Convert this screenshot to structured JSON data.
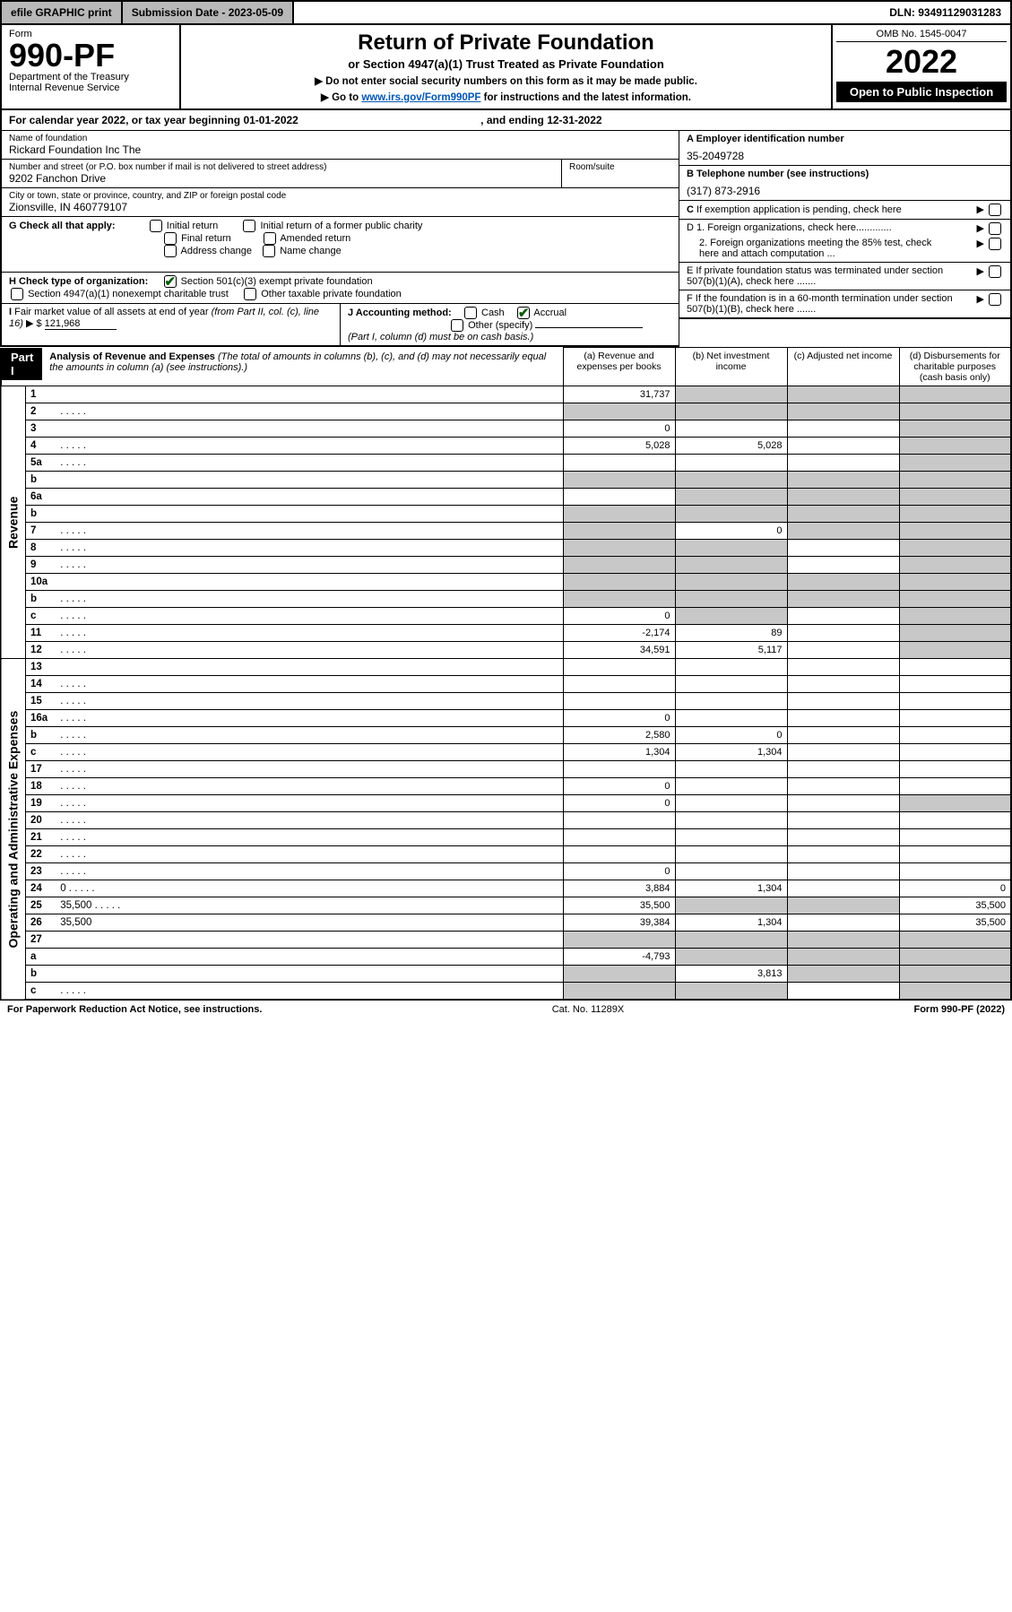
{
  "topbar": {
    "efile_btn": "efile GRAPHIC print",
    "submission": "Submission Date - 2023-05-09",
    "dln": "DLN: 93491129031283"
  },
  "header": {
    "form_label": "Form",
    "form_no": "990-PF",
    "dept": "Department of the Treasury",
    "irs": "Internal Revenue Service",
    "title": "Return of Private Foundation",
    "subtitle": "or Section 4947(a)(1) Trust Treated as Private Foundation",
    "note1": "▶ Do not enter social security numbers on this form as it may be made public.",
    "note2_pre": "▶ Go to ",
    "note2_link": "www.irs.gov/Form990PF",
    "note2_post": " for instructions and the latest information.",
    "omb": "OMB No. 1545-0047",
    "year": "2022",
    "open": "Open to Public Inspection"
  },
  "calendar": {
    "pre": "For calendar year 2022, or tax year beginning ",
    "begin": "01-01-2022",
    "mid": " , and ending ",
    "end": "12-31-2022"
  },
  "foundation": {
    "name_lbl": "Name of foundation",
    "name": "Rickard Foundation Inc The",
    "addr_lbl": "Number and street (or P.O. box number if mail is not delivered to street address)",
    "addr": "9202 Fanchon Drive",
    "room_lbl": "Room/suite",
    "city_lbl": "City or town, state or province, country, and ZIP or foreign postal code",
    "city": "Zionsville, IN  460779107"
  },
  "right": {
    "a_lbl": "A Employer identification number",
    "a_val": "35-2049728",
    "b_lbl": "B Telephone number (see instructions)",
    "b_val": "(317) 873-2916",
    "c_lbl": "C If exemption application is pending, check here",
    "d1": "D 1. Foreign organizations, check here.............",
    "d2": "2. Foreign organizations meeting the 85% test, check here and attach computation ...",
    "e": "E  If private foundation status was terminated under section 507(b)(1)(A), check here .......",
    "f": "F  If the foundation is in a 60-month termination under section 507(b)(1)(B), check here ......."
  },
  "g": {
    "label": "G Check all that apply:",
    "opts": [
      "Initial return",
      "Initial return of a former public charity",
      "Final return",
      "Amended return",
      "Address change",
      "Name change"
    ]
  },
  "h": {
    "label": "H Check type of organization:",
    "o1": "Section 501(c)(3) exempt private foundation",
    "o2": "Section 4947(a)(1) nonexempt charitable trust",
    "o3": "Other taxable private foundation"
  },
  "i": {
    "label": "I Fair market value of all assets at end of year (from Part II, col. (c), line 16) ▶ $",
    "val": "121,968"
  },
  "j": {
    "label": "J Accounting method:",
    "cash": "Cash",
    "accrual": "Accrual",
    "other": "Other (specify)",
    "note": "(Part I, column (d) must be on cash basis.)"
  },
  "part1": {
    "badge": "Part I",
    "title": "Analysis of Revenue and Expenses",
    "title_note": " (The total of amounts in columns (b), (c), and (d) may not necessarily equal the amounts in column (a) (see instructions).)",
    "col_a": "(a)   Revenue and expenses per books",
    "col_b": "(b)   Net investment income",
    "col_c": "(c)   Adjusted net income",
    "col_d": "(d)  Disbursements for charitable purposes (cash basis only)"
  },
  "revenue_label": "Revenue",
  "opex_label": "Operating and Administrative Expenses",
  "rows": [
    {
      "n": "1",
      "d": "",
      "a": "31,737",
      "b": "",
      "c": "",
      "shade_b": true,
      "shade_c": true,
      "shade_d": true
    },
    {
      "n": "2",
      "d": "",
      "a": "",
      "b": "",
      "c": "",
      "shade_a": true,
      "shade_b": true,
      "shade_c": true,
      "shade_d": true,
      "dots": true
    },
    {
      "n": "3",
      "d": "",
      "a": "0",
      "b": "",
      "c": "",
      "shade_d": true
    },
    {
      "n": "4",
      "d": "",
      "a": "5,028",
      "b": "5,028",
      "c": "",
      "shade_d": true,
      "dots": true
    },
    {
      "n": "5a",
      "d": "",
      "a": "",
      "b": "",
      "c": "",
      "shade_d": true,
      "dots": true
    },
    {
      "n": "b",
      "d": "",
      "a": "",
      "b": "",
      "c": "",
      "shade_a": true,
      "shade_b": true,
      "shade_c": true,
      "shade_d": true
    },
    {
      "n": "6a",
      "d": "",
      "a": "",
      "b": "",
      "c": "",
      "shade_b": true,
      "shade_c": true,
      "shade_d": true
    },
    {
      "n": "b",
      "d": "",
      "a": "",
      "b": "",
      "c": "",
      "shade_a": true,
      "shade_b": true,
      "shade_c": true,
      "shade_d": true
    },
    {
      "n": "7",
      "d": "",
      "a": "",
      "b": "0",
      "c": "",
      "shade_a": true,
      "shade_c": true,
      "shade_d": true,
      "dots": true
    },
    {
      "n": "8",
      "d": "",
      "a": "",
      "b": "",
      "c": "",
      "shade_a": true,
      "shade_b": true,
      "shade_d": true,
      "dots": true
    },
    {
      "n": "9",
      "d": "",
      "a": "",
      "b": "",
      "c": "",
      "shade_a": true,
      "shade_b": true,
      "shade_d": true,
      "dots": true
    },
    {
      "n": "10a",
      "d": "",
      "a": "",
      "b": "",
      "c": "",
      "shade_a": true,
      "shade_b": true,
      "shade_c": true,
      "shade_d": true
    },
    {
      "n": "b",
      "d": "",
      "a": "",
      "b": "",
      "c": "",
      "shade_a": true,
      "shade_b": true,
      "shade_c": true,
      "shade_d": true,
      "dots": true
    },
    {
      "n": "c",
      "d": "",
      "a": "0",
      "b": "",
      "c": "",
      "shade_b": true,
      "shade_d": true,
      "dots": true
    },
    {
      "n": "11",
      "d": "",
      "a": "-2,174",
      "b": "89",
      "c": "",
      "shade_d": true,
      "dots": true
    },
    {
      "n": "12",
      "d": "",
      "a": "34,591",
      "b": "5,117",
      "c": "",
      "shade_d": true,
      "dots": true,
      "bold": true
    },
    {
      "n": "13",
      "d": "",
      "a": "",
      "b": "",
      "c": ""
    },
    {
      "n": "14",
      "d": "",
      "a": "",
      "b": "",
      "c": "",
      "dots": true
    },
    {
      "n": "15",
      "d": "",
      "a": "",
      "b": "",
      "c": "",
      "dots": true
    },
    {
      "n": "16a",
      "d": "",
      "a": "0",
      "b": "",
      "c": "",
      "dots": true
    },
    {
      "n": "b",
      "d": "",
      "a": "2,580",
      "b": "0",
      "c": "",
      "dots": true
    },
    {
      "n": "c",
      "d": "",
      "a": "1,304",
      "b": "1,304",
      "c": "",
      "dots": true
    },
    {
      "n": "17",
      "d": "",
      "a": "",
      "b": "",
      "c": "",
      "dots": true
    },
    {
      "n": "18",
      "d": "",
      "a": "0",
      "b": "",
      "c": "",
      "dots": true
    },
    {
      "n": "19",
      "d": "",
      "a": "0",
      "b": "",
      "c": "",
      "shade_d": true,
      "dots": true
    },
    {
      "n": "20",
      "d": "",
      "a": "",
      "b": "",
      "c": "",
      "dots": true
    },
    {
      "n": "21",
      "d": "",
      "a": "",
      "b": "",
      "c": "",
      "dots": true
    },
    {
      "n": "22",
      "d": "",
      "a": "",
      "b": "",
      "c": "",
      "dots": true
    },
    {
      "n": "23",
      "d": "",
      "a": "0",
      "b": "",
      "c": "",
      "dots": true
    },
    {
      "n": "24",
      "d": "0",
      "a": "3,884",
      "b": "1,304",
      "c": "",
      "dots": true
    },
    {
      "n": "25",
      "d": "35,500",
      "a": "35,500",
      "b": "",
      "c": "",
      "shade_b": true,
      "shade_c": true,
      "dots": true
    },
    {
      "n": "26",
      "d": "35,500",
      "a": "39,384",
      "b": "1,304",
      "c": ""
    },
    {
      "n": "27",
      "d": "",
      "a": "",
      "b": "",
      "c": "",
      "shade_a": true,
      "shade_b": true,
      "shade_c": true,
      "shade_d": true
    },
    {
      "n": "a",
      "d": "",
      "a": "-4,793",
      "b": "",
      "c": "",
      "shade_b": true,
      "shade_c": true,
      "shade_d": true
    },
    {
      "n": "b",
      "d": "",
      "a": "",
      "b": "3,813",
      "c": "",
      "shade_a": true,
      "shade_c": true,
      "shade_d": true
    },
    {
      "n": "c",
      "d": "",
      "a": "",
      "b": "",
      "c": "",
      "shade_a": true,
      "shade_b": true,
      "shade_d": true,
      "dots": true
    }
  ],
  "footer": {
    "left": "For Paperwork Reduction Act Notice, see instructions.",
    "mid": "Cat. No. 11289X",
    "right": "Form 990-PF (2022)"
  },
  "colors": {
    "shade": "#c8c8c8",
    "btn_bg": "#b8b8b8",
    "link": "#0056b3",
    "check": "#065a06"
  }
}
